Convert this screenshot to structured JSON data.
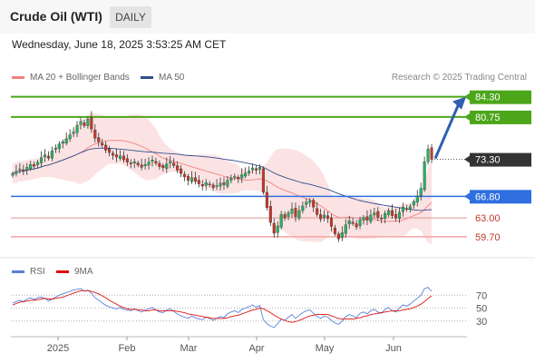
{
  "header": {
    "instrument": "Crude Oil (WTI)",
    "timeframe": "DAILY"
  },
  "datetime": "Wednesday, June 18, 2025 3:53:25 AM CET",
  "legend": {
    "bollinger": {
      "label": "MA 20 + Bollinger Bands",
      "color": "#f08080"
    },
    "ma50": {
      "label": "MA 50",
      "color": "#2f4f8f"
    }
  },
  "credit": "Research © 2025 Trading Central",
  "rsi_legend": {
    "rsi": {
      "label": "RSI",
      "color": "#5b7fd6"
    },
    "ma9": {
      "label": "9MA",
      "color": "#dd1111"
    }
  },
  "colors": {
    "up": "#27ae60",
    "down": "#c0392b",
    "resistance": "#4ca619",
    "support": "#2f6fe0",
    "arrow": "#2f5faf"
  },
  "chart_data": {
    "type": "candlestick",
    "price_axis": {
      "min": 56.0,
      "max": 86.0
    },
    "x_ticks": [
      "2025",
      "Feb",
      "Mar",
      "Apr",
      "May",
      "Jun"
    ],
    "levels": [
      {
        "value": 84.3,
        "label": "84.30",
        "kind": "resistance",
        "style": "tag"
      },
      {
        "value": 80.75,
        "label": "80.75",
        "kind": "resistance",
        "style": "tag"
      },
      {
        "value": 73.3,
        "label": "73.30",
        "kind": "last",
        "style": "tag"
      },
      {
        "value": 66.8,
        "label": "66.80",
        "kind": "support",
        "style": "tag"
      },
      {
        "value": 63.0,
        "label": "63.00",
        "kind": "pivot",
        "style": "text"
      },
      {
        "value": 59.7,
        "label": "59.70",
        "kind": "support2",
        "style": "text"
      }
    ],
    "closes": [
      70.8,
      71.2,
      71.6,
      71.3,
      71.9,
      72.4,
      72.1,
      72.8,
      73.6,
      74.1,
      73.5,
      74.8,
      75.3,
      76.0,
      76.4,
      76.9,
      77.6,
      78.1,
      79.3,
      80.0,
      79.2,
      80.4,
      78.6,
      77.0,
      76.4,
      75.8,
      74.9,
      74.5,
      74.0,
      73.7,
      73.9,
      73.2,
      72.8,
      72.5,
      72.9,
      72.3,
      71.9,
      72.4,
      72.8,
      73.2,
      72.6,
      72.0,
      71.8,
      72.5,
      72.9,
      72.2,
      71.4,
      70.8,
      70.2,
      69.6,
      70.1,
      69.4,
      69.0,
      68.6,
      69.2,
      68.8,
      68.3,
      68.7,
      69.1,
      68.8,
      69.6,
      70.0,
      70.3,
      69.9,
      70.6,
      70.9,
      71.2,
      71.8,
      71.4,
      71.9,
      67.5,
      64.8,
      62.2,
      60.3,
      61.6,
      63.6,
      63.0,
      63.9,
      64.6,
      63.2,
      64.3,
      65.1,
      65.8,
      66.0,
      64.9,
      63.6,
      62.8,
      63.5,
      62.9,
      61.5,
      60.2,
      59.3,
      60.4,
      61.8,
      62.5,
      62.0,
      61.4,
      62.7,
      63.1,
      62.6,
      63.5,
      63.9,
      63.1,
      62.8,
      63.8,
      64.3,
      63.4,
      63.0,
      64.0,
      64.9,
      64.5,
      65.0,
      65.9,
      66.8,
      68.2,
      72.9,
      75.1,
      73.3
    ],
    "series": [
      {
        "name": "MA 20 + Bollinger Bands"
      },
      {
        "name": "MA 50"
      }
    ],
    "rsi": {
      "ticks": [
        70,
        50,
        30
      ],
      "rsi": [
        58,
        60,
        62,
        60,
        64,
        66,
        63,
        66,
        67,
        65,
        61,
        64,
        67,
        70,
        72,
        74,
        76,
        78,
        79,
        80,
        76,
        78,
        73,
        66,
        62,
        58,
        54,
        52,
        50,
        49,
        51,
        48,
        47,
        46,
        49,
        46,
        44,
        47,
        49,
        51,
        47,
        44,
        43,
        47,
        49,
        45,
        41,
        38,
        36,
        34,
        38,
        35,
        33,
        32,
        36,
        34,
        31,
        34,
        37,
        35,
        41,
        44,
        46,
        43,
        48,
        50,
        52,
        55,
        51,
        54,
        32,
        26,
        22,
        20,
        26,
        33,
        31,
        36,
        40,
        34,
        39,
        43,
        46,
        47,
        42,
        37,
        34,
        38,
        36,
        31,
        27,
        25,
        30,
        37,
        40,
        38,
        35,
        42,
        44,
        41,
        46,
        48,
        44,
        42,
        48,
        51,
        46,
        44,
        50,
        55,
        53,
        56,
        61,
        65,
        70,
        80,
        82,
        76
      ],
      "ma9": [
        55,
        57,
        59,
        60,
        61,
        62,
        62,
        63,
        64,
        65,
        64,
        64,
        65,
        66,
        67,
        69,
        71,
        73,
        75,
        77,
        77,
        77,
        76,
        74,
        72,
        69,
        66,
        62,
        59,
        56,
        53,
        51,
        49,
        48,
        48,
        47,
        47,
        46,
        46,
        47,
        47,
        46,
        46,
        46,
        46,
        46,
        45,
        44,
        43,
        41,
        40,
        39,
        38,
        37,
        36,
        35,
        34,
        34,
        34,
        34,
        35,
        37,
        38,
        39,
        41,
        43,
        45,
        47,
        48,
        50,
        49,
        46,
        43,
        39,
        36,
        33,
        31,
        29,
        28,
        29,
        31,
        33,
        36,
        38,
        39,
        40,
        40,
        40,
        40,
        38,
        36,
        34,
        33,
        33,
        33,
        33,
        34,
        35,
        37,
        38,
        40,
        41,
        42,
        43,
        44,
        45,
        46,
        46,
        46,
        47,
        48,
        49,
        51,
        53,
        56,
        60,
        65,
        69
      ]
    }
  }
}
